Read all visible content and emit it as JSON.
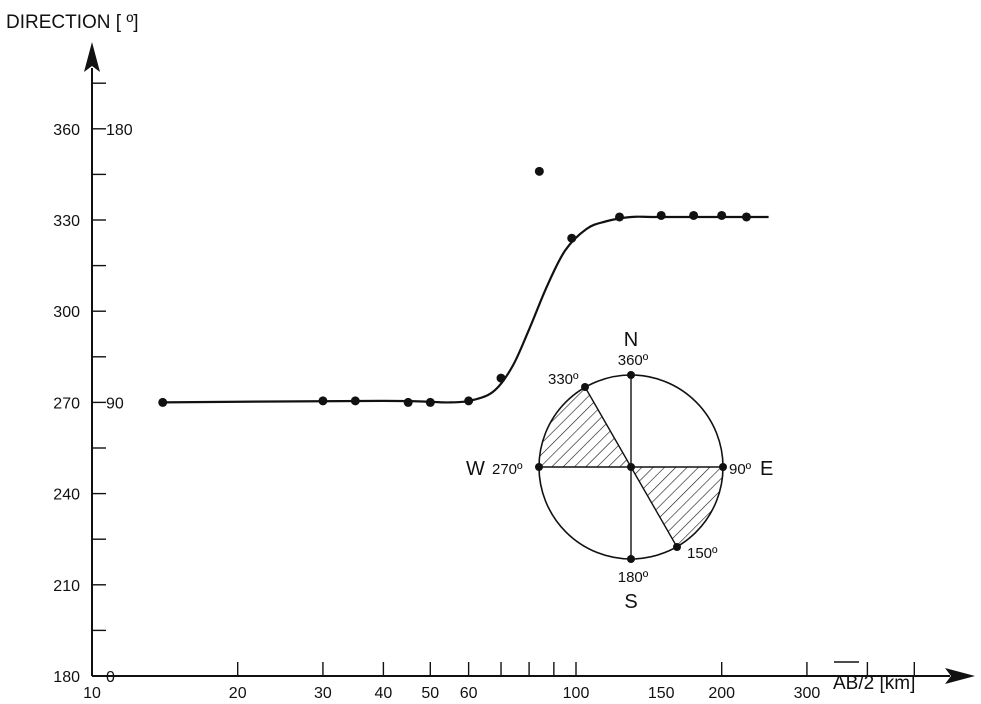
{
  "chart_data": {
    "type": "scatter",
    "title": "",
    "ylabel": "DIRECTION [ º]",
    "xlabel": "AB/2 [km]",
    "xscale": "log",
    "xlim": [
      10,
      500
    ],
    "ylim": [
      180,
      390
    ],
    "y_ticks_left": [
      "180",
      "210",
      "240",
      "270",
      "300",
      "330",
      "360"
    ],
    "y_ticks_inner": [
      "0",
      "90",
      "180"
    ],
    "x_ticks": [
      "10",
      "20",
      "30",
      "40",
      "50",
      "60",
      "100",
      "150",
      "200",
      "300"
    ],
    "series": [
      {
        "x": [
          14,
          30,
          35,
          45,
          50,
          60,
          70,
          84,
          98,
          123,
          150,
          175,
          200,
          225
        ],
        "y": [
          270,
          270.5,
          270.5,
          270,
          270,
          270.5,
          278,
          346,
          324,
          331,
          331.5,
          331.5,
          331.5,
          331
        ]
      }
    ],
    "fit_curve": {
      "x": [
        14,
        40,
        55,
        62,
        68,
        74,
        80,
        87,
        95,
        105,
        115,
        130,
        150,
        250
      ],
      "y": [
        270,
        270.5,
        270,
        271,
        274,
        282,
        294,
        308,
        320,
        327,
        329.5,
        331,
        331,
        331
      ]
    },
    "compass": {
      "north": "N",
      "south": "S",
      "east": "E",
      "west": "W",
      "label_360": "360º",
      "label_330": "330º",
      "label_90": "90º",
      "label_270": "270º",
      "label_150": "150º",
      "label_180": "180º",
      "hatched_sectors": [
        [
          270,
          330
        ],
        [
          90,
          150
        ]
      ]
    }
  }
}
